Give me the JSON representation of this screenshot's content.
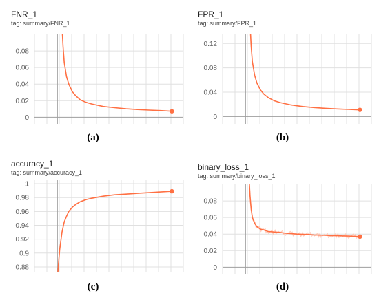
{
  "colors": {
    "series": "#ff7043",
    "grid": "#e0e0e0",
    "axis": "#9e9e9e",
    "smoothing_shadow": "#ffccbc"
  },
  "chart_data": [
    {
      "type": "line",
      "title": "FNR_1",
      "tag": "tag: summary/FNR_1",
      "caption": "(a)",
      "ylim": [
        -0.008,
        0.1
      ],
      "yticks": [
        0,
        0.02,
        0.04,
        0.06,
        0.08
      ],
      "ytick_labels": [
        "0",
        "0.02",
        "0.04",
        "0.06",
        "0.08"
      ],
      "x_range": [
        -0.2,
        1.1
      ],
      "series": [
        {
          "x": [
            0.04,
            0.05,
            0.06,
            0.08,
            0.1,
            0.13,
            0.16,
            0.2,
            0.25,
            0.3,
            0.4,
            0.5,
            0.6,
            0.7,
            0.8,
            0.9,
            1.0
          ],
          "y": [
            0.11,
            0.085,
            0.066,
            0.049,
            0.04,
            0.031,
            0.026,
            0.021,
            0.018,
            0.016,
            0.013,
            0.0115,
            0.0102,
            0.0093,
            0.0086,
            0.008,
            0.0072
          ]
        }
      ],
      "grid": true
    },
    {
      "type": "line",
      "title": "FPR_1",
      "tag": "tag: summary/FPR_1",
      "caption": "(b)",
      "ylim": [
        -0.012,
        0.135
      ],
      "yticks": [
        0,
        0.04,
        0.08,
        0.12
      ],
      "ytick_labels": [
        "0",
        "0.04",
        "0.08",
        "0.12"
      ],
      "x_range": [
        -0.2,
        1.1
      ],
      "series": [
        {
          "x": [
            0.04,
            0.05,
            0.06,
            0.08,
            0.1,
            0.13,
            0.16,
            0.2,
            0.25,
            0.3,
            0.4,
            0.5,
            0.6,
            0.7,
            0.8,
            0.9,
            1.0
          ],
          "y": [
            0.15,
            0.115,
            0.09,
            0.068,
            0.055,
            0.044,
            0.037,
            0.031,
            0.026,
            0.023,
            0.019,
            0.0165,
            0.0148,
            0.0135,
            0.0125,
            0.0118,
            0.011
          ]
        }
      ],
      "grid": true
    },
    {
      "type": "line",
      "title": "accuracy_1",
      "tag": "tag: summary/accuracy_1",
      "caption": "(c)",
      "ylim": [
        0.872,
        1.005
      ],
      "yticks": [
        0.88,
        0.9,
        0.92,
        0.94,
        0.96,
        0.98,
        1
      ],
      "ytick_labels": [
        "0.88",
        "0.9",
        "0.92",
        "0.94",
        "0.96",
        "0.98",
        "1"
      ],
      "x_range": [
        -0.2,
        1.1
      ],
      "series": [
        {
          "x": [
            0.0,
            0.01,
            0.02,
            0.04,
            0.06,
            0.08,
            0.1,
            0.13,
            0.16,
            0.2,
            0.25,
            0.3,
            0.4,
            0.5,
            0.6,
            0.7,
            0.8,
            0.9,
            1.0
          ],
          "y": [
            0.86,
            0.885,
            0.905,
            0.93,
            0.945,
            0.953,
            0.96,
            0.966,
            0.97,
            0.974,
            0.977,
            0.979,
            0.982,
            0.984,
            0.985,
            0.986,
            0.987,
            0.988,
            0.989
          ]
        }
      ],
      "grid": true
    },
    {
      "type": "line",
      "title": "binary_loss_1",
      "tag": "tag: summary/binary_loss_1",
      "caption": "(d)",
      "ylim": [
        -0.008,
        0.1
      ],
      "yticks": [
        0,
        0.02,
        0.04,
        0.06,
        0.08
      ],
      "ytick_labels": [
        "0",
        "0.02",
        "0.04",
        "0.06",
        "0.08"
      ],
      "x_range": [
        -0.2,
        1.1
      ],
      "series": [
        {
          "x": [
            0.03,
            0.04,
            0.05,
            0.06,
            0.08,
            0.1,
            0.13,
            0.16,
            0.2,
            0.25,
            0.3,
            0.35,
            0.4,
            0.45,
            0.5,
            0.55,
            0.6,
            0.65,
            0.7,
            0.75,
            0.8,
            0.85,
            0.9,
            0.95,
            1.0
          ],
          "y": [
            0.11,
            0.085,
            0.07,
            0.06,
            0.053,
            0.049,
            0.046,
            0.045,
            0.043,
            0.0425,
            0.042,
            0.041,
            0.0405,
            0.04,
            0.0398,
            0.0395,
            0.039,
            0.0388,
            0.0385,
            0.0382,
            0.038,
            0.0378,
            0.0376,
            0.0374,
            0.037
          ]
        }
      ],
      "grid": true
    }
  ]
}
